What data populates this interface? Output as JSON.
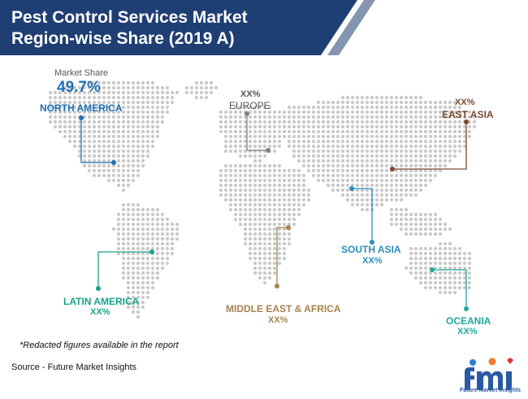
{
  "header": {
    "title_line1": "Pest Control Services Market",
    "title_line2": "Region-wise Share (2019 A)",
    "bg_color": "#1f3e73"
  },
  "chart_data": {
    "type": "map",
    "title": "Pest Control Services Market Region-wise Share (2019 A)",
    "metric_label": "Market Share",
    "regions": [
      {
        "name": "NORTH AMERICA",
        "value": "49.7%",
        "color": "#1f6fb5"
      },
      {
        "name": "EUROPE",
        "value": "XX%",
        "color": "#7f7f7f"
      },
      {
        "name": "EAST ASIA",
        "value": "XX%",
        "color": "#7a4a2e"
      },
      {
        "name": "SOUTH ASIA",
        "value": "XX%",
        "color": "#2b8fbf"
      },
      {
        "name": "LATIN AMERICA",
        "value": "XX%",
        "color": "#17a38b"
      },
      {
        "name": "MIDDLE EAST & AFRICA",
        "value": "XX%",
        "color": "#a68350"
      },
      {
        "name": "OCEANIA",
        "value": "XX%",
        "color": "#1fa89e"
      }
    ]
  },
  "footnote": "*Redacted figures available in the report",
  "source": "Source - Future Market Insights",
  "logo": {
    "mark": "fmi",
    "tagline": "Future Market Insights"
  }
}
